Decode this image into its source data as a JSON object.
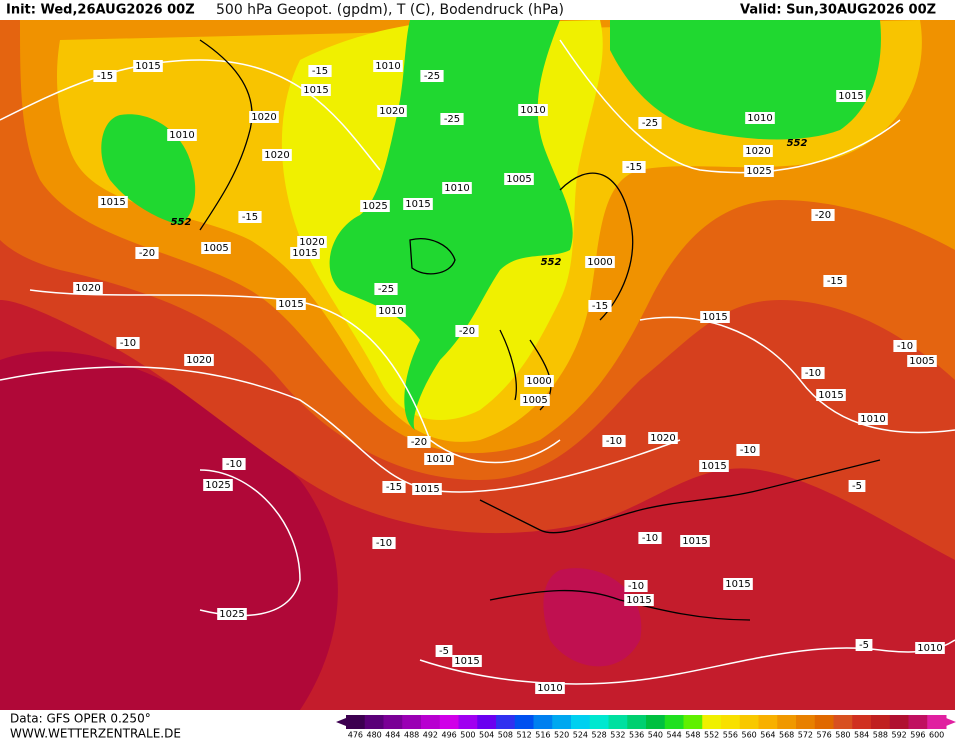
{
  "header": {
    "init": "Init: Wed,26AUG2026 00Z",
    "title": "500 hPa Geopot. (gpdm), T (C), Bodendruck (hPa)",
    "valid": "Valid: Sun,30AUG2026 00Z"
  },
  "footer": {
    "data": "Data: GFS OPER 0.250°",
    "site": "WWW.WETTERZENTRALE.DE"
  },
  "colorbar": {
    "labels": [
      "476",
      "480",
      "484",
      "488",
      "492",
      "496",
      "500",
      "504",
      "508",
      "512",
      "516",
      "520",
      "524",
      "528",
      "532",
      "536",
      "540",
      "544",
      "548",
      "552",
      "556",
      "560",
      "564",
      "568",
      "572",
      "576",
      "580",
      "584",
      "588",
      "592",
      "596",
      "600"
    ],
    "colors": [
      "#3c0050",
      "#5a0078",
      "#7a0096",
      "#9a00b4",
      "#b800d0",
      "#d000e8",
      "#a000f0",
      "#6a00f0",
      "#3030f0",
      "#0050f0",
      "#0080f0",
      "#00a8f0",
      "#00d0f0",
      "#00e8d0",
      "#00e0a0",
      "#00d070",
      "#00c040",
      "#20e020",
      "#60f000",
      "#f0f000",
      "#f8e000",
      "#f8c800",
      "#f8b000",
      "#f09800",
      "#e88000",
      "#e06800",
      "#d85020",
      "#d03020",
      "#c02020",
      "#b01030",
      "#c01060",
      "#e020a0"
    ]
  },
  "isobar_labels": [
    "1015",
    "1010",
    "1015",
    "1020",
    "1010",
    "1020",
    "1020",
    "1010",
    "1005",
    "1010",
    "1015",
    "1025",
    "1015",
    "1005",
    "1020",
    "1015",
    "1000",
    "1015",
    "1010",
    "1015",
    "1020",
    "1000",
    "1005",
    "1010",
    "1015",
    "1020",
    "1015",
    "1025",
    "1015",
    "1015",
    "1015",
    "1025",
    "1015",
    "1010",
    "1010",
    "1015",
    "1010",
    "1020",
    "1025",
    "1020",
    "1010",
    "1015",
    "1005"
  ],
  "temperature_labels": [
    "-15",
    "-15",
    "-25",
    "-25",
    "-25",
    "-15",
    "-20",
    "-15",
    "-20",
    "-25",
    "-15",
    "-20",
    "-15",
    "-10",
    "-10",
    "-10",
    "-20",
    "-10",
    "-10",
    "-10",
    "-15",
    "-5",
    "-10",
    "-10",
    "-10",
    "-5",
    "-5"
  ],
  "contour_labels": [
    "552",
    "552",
    "552"
  ]
}
